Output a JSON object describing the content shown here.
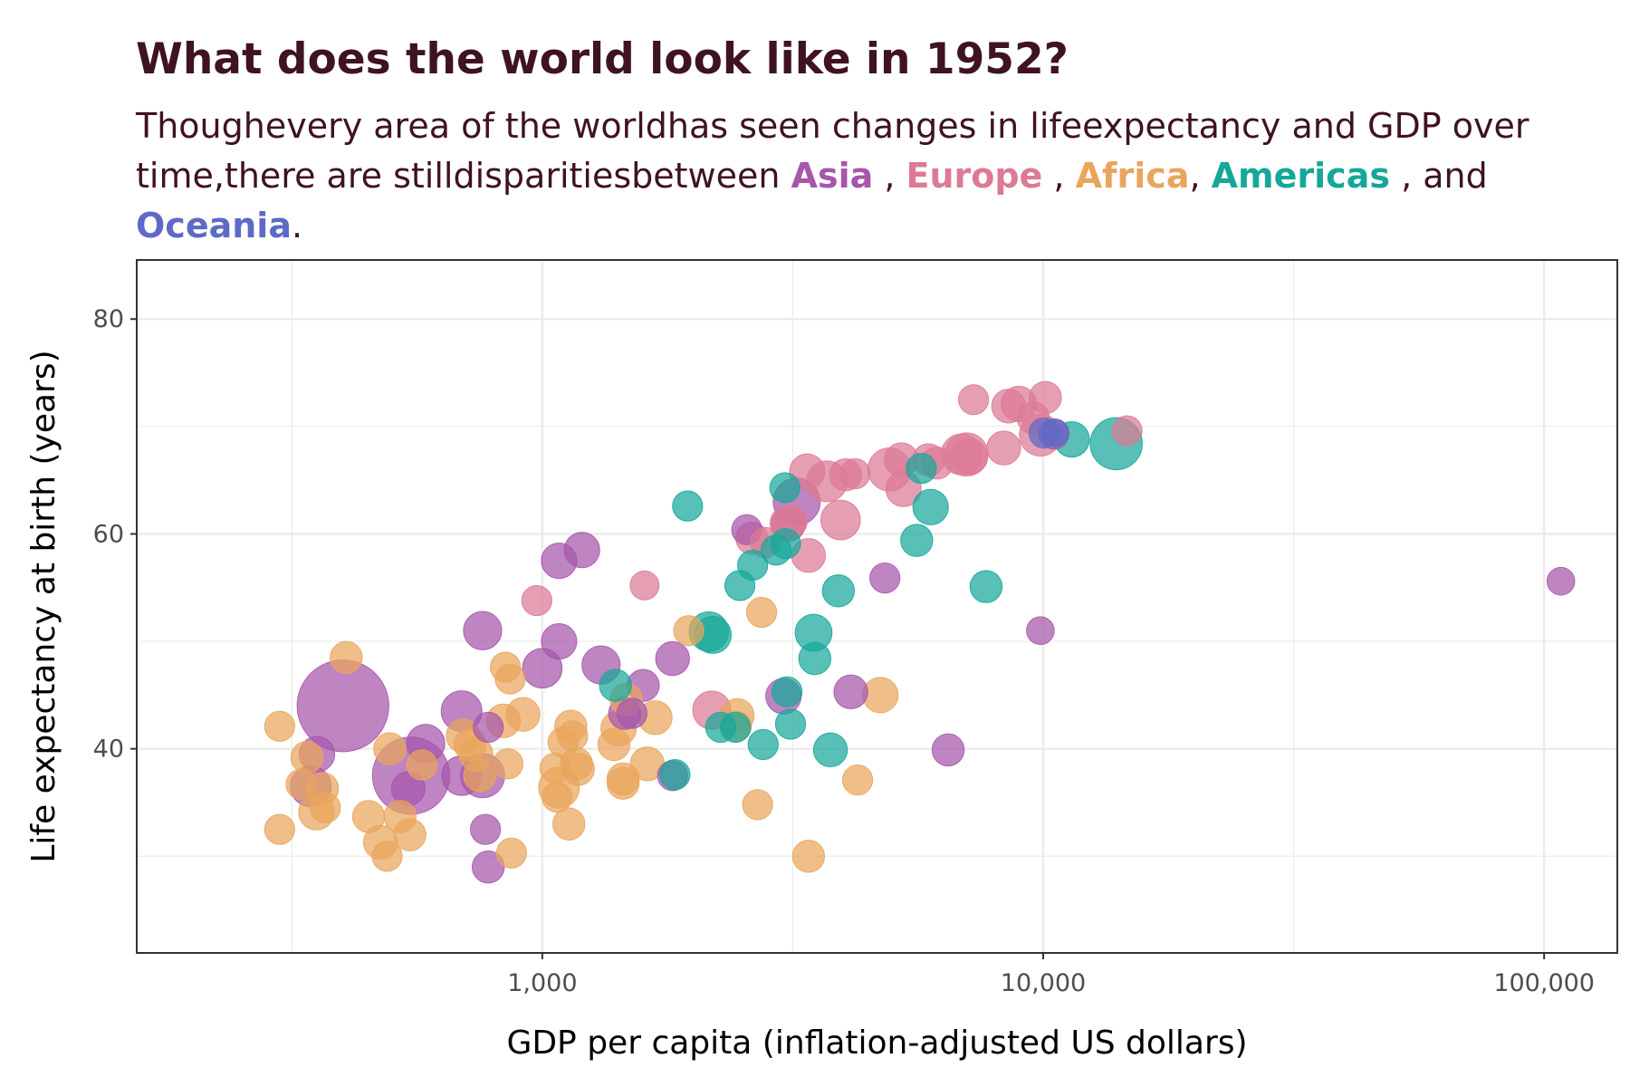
{
  "title": "What does the world look like in 1952?",
  "subtitle": {
    "text_before": "Thoughevery area of the worldhas  seen changes  in lifeexpectancy  and GDP over time,there are stilldisparitiesbetween ",
    "asia": "Asia",
    "sep1": " , ",
    "europe": "Europe",
    "sep2": " , ",
    "africa": "Africa",
    "sep3": ", ",
    "americas": "Americas",
    "sep4": "  , and ",
    "oceania": "Oceania",
    "end": "."
  },
  "colors": {
    "Asia": "#a656ab",
    "Europe": "#dc7a94",
    "Africa": "#e9a55c",
    "Americas": "#17a79a",
    "Oceania": "#5e6ac7",
    "title_text": "#3f1320"
  },
  "chart_data": {
    "type": "scatter",
    "xlabel": "GDP per capita (inflation-adjusted US dollars)",
    "ylabel": "Life expectancy at birth (years)",
    "x_scale": "log10",
    "xlim": [
      155,
      140000
    ],
    "ylim": [
      21,
      85.5
    ],
    "x_ticks": [
      1000,
      10000,
      100000
    ],
    "x_tick_labels": [
      "1,000",
      "10,000",
      "100,000"
    ],
    "y_ticks": [
      40,
      60,
      80
    ],
    "y_tick_labels": [
      "40",
      "60",
      "80"
    ],
    "grid": true,
    "size_encoding": "population",
    "series": [
      {
        "name": "Asia",
        "points": [
          {
            "x": 400,
            "y": 44,
            "s": 10
          },
          {
            "x": 547,
            "y": 37.5,
            "s": 6.5
          },
          {
            "x": 345,
            "y": 36.5,
            "s": 1
          },
          {
            "x": 355,
            "y": 39.5,
            "s": 0.6
          },
          {
            "x": 690,
            "y": 37.5,
            "s": 0.9
          },
          {
            "x": 690,
            "y": 43.5,
            "s": 1
          },
          {
            "x": 760,
            "y": 37.5,
            "s": 1.3
          },
          {
            "x": 585,
            "y": 40.5,
            "s": 0.8
          },
          {
            "x": 540,
            "y": 36.3,
            "s": 0.5
          },
          {
            "x": 770,
            "y": 32.5,
            "s": 0.3
          },
          {
            "x": 780,
            "y": 29,
            "s": 0.4
          },
          {
            "x": 760,
            "y": 51,
            "s": 0.8
          },
          {
            "x": 780,
            "y": 42,
            "s": 0.3
          },
          {
            "x": 1000,
            "y": 47.5,
            "s": 0.9
          },
          {
            "x": 1080,
            "y": 57.5,
            "s": 0.6
          },
          {
            "x": 1080,
            "y": 50,
            "s": 0.6
          },
          {
            "x": 1200,
            "y": 58.5,
            "s": 0.6
          },
          {
            "x": 1310,
            "y": 47.8,
            "s": 0.8
          },
          {
            "x": 1460,
            "y": 43.3,
            "s": 0.4
          },
          {
            "x": 1510,
            "y": 43.3,
            "s": 0.3
          },
          {
            "x": 1590,
            "y": 45.9,
            "s": 0.4
          },
          {
            "x": 1820,
            "y": 48.4,
            "s": 0.5
          },
          {
            "x": 1820,
            "y": 37.5,
            "s": 0.3
          },
          {
            "x": 2560,
            "y": 60.4,
            "s": 0.3
          },
          {
            "x": 3030,
            "y": 44.9,
            "s": 0.6
          },
          {
            "x": 3100,
            "y": 60.9,
            "s": 0.5
          },
          {
            "x": 3220,
            "y": 63,
            "s": 1.6
          },
          {
            "x": 4130,
            "y": 45.3,
            "s": 0.5
          },
          {
            "x": 4830,
            "y": 55.9,
            "s": 0.3
          },
          {
            "x": 6460,
            "y": 39.9,
            "s": 0.4
          },
          {
            "x": 9870,
            "y": 51,
            "s": 0.2
          },
          {
            "x": 10500,
            "y": 69.3,
            "s": 0.3
          },
          {
            "x": 108000,
            "y": 55.6,
            "s": 0.2
          }
        ]
      },
      {
        "name": "Europe",
        "points": [
          {
            "x": 975,
            "y": 53.8,
            "s": 0.3
          },
          {
            "x": 1600,
            "y": 55.2,
            "s": 0.25
          },
          {
            "x": 2180,
            "y": 43.6,
            "s": 0.8
          },
          {
            "x": 2620,
            "y": 59.6,
            "s": 0.4
          },
          {
            "x": 2790,
            "y": 59.2,
            "s": 0.3
          },
          {
            "x": 3080,
            "y": 61,
            "s": 0.5
          },
          {
            "x": 3140,
            "y": 61.2,
            "s": 0.4
          },
          {
            "x": 3380,
            "y": 65.8,
            "s": 0.6
          },
          {
            "x": 3400,
            "y": 58,
            "s": 0.5
          },
          {
            "x": 3700,
            "y": 64.9,
            "s": 1
          },
          {
            "x": 3940,
            "y": 61.3,
            "s": 0.9
          },
          {
            "x": 4030,
            "y": 65.5,
            "s": 0.4
          },
          {
            "x": 4210,
            "y": 65.6,
            "s": 0.3
          },
          {
            "x": 4930,
            "y": 66,
            "s": 1.2
          },
          {
            "x": 5210,
            "y": 66.9,
            "s": 0.5
          },
          {
            "x": 5260,
            "y": 64.2,
            "s": 0.6
          },
          {
            "x": 5900,
            "y": 66.9,
            "s": 0.4
          },
          {
            "x": 6140,
            "y": 66.6,
            "s": 0.4
          },
          {
            "x": 6870,
            "y": 67.4,
            "s": 1
          },
          {
            "x": 7030,
            "y": 67.4,
            "s": 1.2
          },
          {
            "x": 7140,
            "y": 67.2,
            "s": 0.6
          },
          {
            "x": 7260,
            "y": 72.5,
            "s": 0.3
          },
          {
            "x": 8340,
            "y": 68,
            "s": 0.5
          },
          {
            "x": 8530,
            "y": 71.9,
            "s": 0.5
          },
          {
            "x": 8940,
            "y": 72.1,
            "s": 0.6
          },
          {
            "x": 9550,
            "y": 70.8,
            "s": 0.4
          },
          {
            "x": 9870,
            "y": 69.2,
            "s": 1.1
          },
          {
            "x": 10100,
            "y": 72.7,
            "s": 0.4
          },
          {
            "x": 14700,
            "y": 69.6,
            "s": 0.3
          }
        ]
      },
      {
        "name": "Africa",
        "points": [
          {
            "x": 299,
            "y": 42.1,
            "s": 0.3
          },
          {
            "x": 299,
            "y": 32.5,
            "s": 0.3
          },
          {
            "x": 330,
            "y": 36.7,
            "s": 0.3
          },
          {
            "x": 339,
            "y": 39.2,
            "s": 0.4
          },
          {
            "x": 354,
            "y": 34.1,
            "s": 0.6
          },
          {
            "x": 364,
            "y": 36.3,
            "s": 0.4
          },
          {
            "x": 369,
            "y": 34.5,
            "s": 0.3
          },
          {
            "x": 406,
            "y": 48.5,
            "s": 0.4
          },
          {
            "x": 450,
            "y": 33.7,
            "s": 0.4
          },
          {
            "x": 475,
            "y": 31.3,
            "s": 0.5
          },
          {
            "x": 490,
            "y": 30,
            "s": 0.3
          },
          {
            "x": 496,
            "y": 40,
            "s": 0.4
          },
          {
            "x": 520,
            "y": 33.7,
            "s": 0.4
          },
          {
            "x": 544,
            "y": 32,
            "s": 0.4
          },
          {
            "x": 575,
            "y": 38.5,
            "s": 0.3
          },
          {
            "x": 695,
            "y": 41.2,
            "s": 0.5
          },
          {
            "x": 717,
            "y": 40.4,
            "s": 0.4
          },
          {
            "x": 737,
            "y": 39.5,
            "s": 0.5
          },
          {
            "x": 750,
            "y": 37.5,
            "s": 0.4
          },
          {
            "x": 836,
            "y": 42.6,
            "s": 0.5
          },
          {
            "x": 844,
            "y": 47.6,
            "s": 0.3
          },
          {
            "x": 854,
            "y": 38.6,
            "s": 0.3
          },
          {
            "x": 863,
            "y": 46.5,
            "s": 0.3
          },
          {
            "x": 868,
            "y": 30.3,
            "s": 0.3
          },
          {
            "x": 915,
            "y": 43.2,
            "s": 0.5
          },
          {
            "x": 1060,
            "y": 38.2,
            "s": 0.3
          },
          {
            "x": 1070,
            "y": 35.5,
            "s": 0.3
          },
          {
            "x": 1080,
            "y": 36.4,
            "s": 1
          },
          {
            "x": 1100,
            "y": 40.6,
            "s": 0.3
          },
          {
            "x": 1130,
            "y": 33,
            "s": 0.4
          },
          {
            "x": 1140,
            "y": 42.1,
            "s": 0.4
          },
          {
            "x": 1150,
            "y": 41.2,
            "s": 0.3
          },
          {
            "x": 1170,
            "y": 38.6,
            "s": 0.4
          },
          {
            "x": 1180,
            "y": 38.1,
            "s": 0.4
          },
          {
            "x": 1390,
            "y": 40.4,
            "s": 0.4
          },
          {
            "x": 1420,
            "y": 41.9,
            "s": 0.6
          },
          {
            "x": 1450,
            "y": 37.2,
            "s": 0.4
          },
          {
            "x": 1450,
            "y": 36.8,
            "s": 0.4
          },
          {
            "x": 1470,
            "y": 44.6,
            "s": 0.4
          },
          {
            "x": 1620,
            "y": 38.6,
            "s": 0.5
          },
          {
            "x": 1680,
            "y": 42.9,
            "s": 0.5
          },
          {
            "x": 1960,
            "y": 51,
            "s": 0.3
          },
          {
            "x": 2440,
            "y": 42.1,
            "s": 0.3
          },
          {
            "x": 2450,
            "y": 43.1,
            "s": 0.5
          },
          {
            "x": 2690,
            "y": 34.8,
            "s": 0.3
          },
          {
            "x": 2740,
            "y": 52.7,
            "s": 0.3
          },
          {
            "x": 3400,
            "y": 30,
            "s": 0.4
          },
          {
            "x": 4260,
            "y": 37.1,
            "s": 0.3
          },
          {
            "x": 4730,
            "y": 45,
            "s": 0.6
          }
        ]
      },
      {
        "name": "Americas",
        "points": [
          {
            "x": 1400,
            "y": 45.9,
            "s": 0.4
          },
          {
            "x": 1840,
            "y": 37.6,
            "s": 0.3
          },
          {
            "x": 1950,
            "y": 62.6,
            "s": 0.3
          },
          {
            "x": 2150,
            "y": 50.9,
            "s": 0.9
          },
          {
            "x": 2190,
            "y": 50.6,
            "s": 0.7
          },
          {
            "x": 2270,
            "y": 42,
            "s": 0.3
          },
          {
            "x": 2430,
            "y": 42,
            "s": 0.3
          },
          {
            "x": 2480,
            "y": 55.2,
            "s": 0.3
          },
          {
            "x": 2630,
            "y": 57.1,
            "s": 0.3
          },
          {
            "x": 2760,
            "y": 40.4,
            "s": 0.3
          },
          {
            "x": 2930,
            "y": 58.5,
            "s": 0.3
          },
          {
            "x": 3060,
            "y": 59.1,
            "s": 0.3
          },
          {
            "x": 3050,
            "y": 64.3,
            "s": 0.3
          },
          {
            "x": 3080,
            "y": 45.3,
            "s": 0.3
          },
          {
            "x": 3130,
            "y": 42.3,
            "s": 0.3
          },
          {
            "x": 3480,
            "y": 50.8,
            "s": 0.7
          },
          {
            "x": 3500,
            "y": 48.4,
            "s": 0.4
          },
          {
            "x": 3760,
            "y": 39.9,
            "s": 0.5
          },
          {
            "x": 3900,
            "y": 54.7,
            "s": 0.4
          },
          {
            "x": 5590,
            "y": 59.4,
            "s": 0.4
          },
          {
            "x": 5710,
            "y": 66.1,
            "s": 0.3
          },
          {
            "x": 5960,
            "y": 62.5,
            "s": 0.6
          },
          {
            "x": 7690,
            "y": 55.1,
            "s": 0.4
          },
          {
            "x": 11400,
            "y": 68.8,
            "s": 0.6
          },
          {
            "x": 13990,
            "y": 68.4,
            "s": 2.2
          }
        ]
      },
      {
        "name": "Oceania",
        "points": [
          {
            "x": 10040,
            "y": 69.4,
            "s": 0.3
          },
          {
            "x": 10560,
            "y": 69.4,
            "s": 0.2
          }
        ]
      }
    ]
  }
}
